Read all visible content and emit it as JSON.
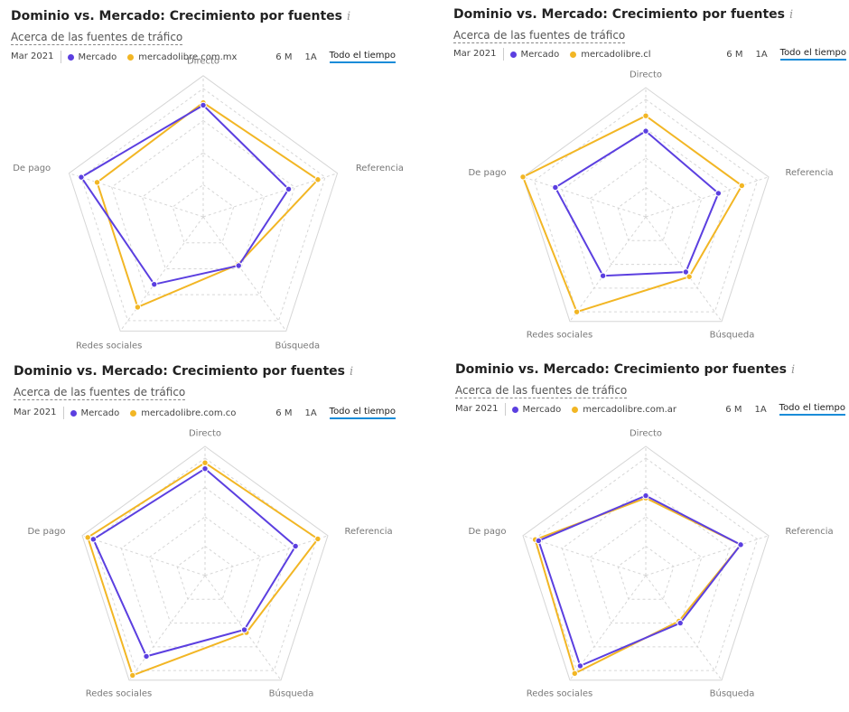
{
  "colors": {
    "mercado": "#5b3fe0",
    "domain": "#f2b624",
    "grid": "#d6d6d6"
  },
  "chart_data": [
    {
      "type": "radar",
      "title": "Dominio vs. Mercado: Crecimiento por fuentes",
      "link": "Acerca de las fuentes de tráfico",
      "date": "Mar 2021",
      "ranges": [
        "6 M",
        "1A",
        "Todo el tiempo"
      ],
      "active_range": "Todo el tiempo",
      "axes": [
        "Directo",
        "Referencia",
        "Búsqueda",
        "Redes sociales",
        "De pago"
      ],
      "series": [
        {
          "name": "Mercado",
          "values": [
            0.87,
            0.7,
            0.47,
            0.65,
            1.0
          ]
        },
        {
          "name": "mercadolibre.com.mx",
          "values": [
            0.89,
            0.94,
            0.46,
            0.87,
            0.87
          ]
        }
      ]
    },
    {
      "type": "radar",
      "title": "Dominio vs. Mercado: Crecimiento por fuentes",
      "link": "Acerca de las fuentes de tráfico",
      "date": "Mar 2021",
      "ranges": [
        "6 M",
        "1A",
        "Todo el tiempo"
      ],
      "active_range": "Todo el tiempo",
      "axes": [
        "Directo",
        "Referencia",
        "Búsqueda",
        "Redes sociales",
        "De pago"
      ],
      "series": [
        {
          "name": "Mercado",
          "values": [
            0.73,
            0.65,
            0.58,
            0.62,
            0.81
          ]
        },
        {
          "name": "mercadolibre.cl",
          "values": [
            0.86,
            0.86,
            0.63,
            1.0,
            1.1
          ]
        }
      ]
    },
    {
      "type": "radar",
      "title": "Dominio vs. Mercado: Crecimiento por fuentes",
      "link": "Acerca de las fuentes de tráfico",
      "date": "Mar 2021",
      "ranges": [
        "6 M",
        "1A",
        "Todo el tiempo"
      ],
      "active_range": "Todo el tiempo",
      "axes": [
        "Directo",
        "Referencia",
        "Búsqueda",
        "Redes sociales",
        "De pago"
      ],
      "series": [
        {
          "name": "Mercado",
          "values": [
            0.91,
            0.81,
            0.57,
            0.85,
            1.0
          ]
        },
        {
          "name": "mercadolibre.com.co",
          "values": [
            0.96,
            1.01,
            0.6,
            1.05,
            1.05
          ]
        }
      ]
    },
    {
      "type": "radar",
      "title": "Dominio vs. Mercado: Crecimiento por fuentes",
      "link": "Acerca de las fuentes de tráfico",
      "date": "Mar 2021",
      "ranges": [
        "6 M",
        "1A",
        "Todo el tiempo"
      ],
      "active_range": "Todo el tiempo",
      "axes": [
        "Directo",
        "Referencia",
        "Búsqueda",
        "Redes sociales",
        "De pago"
      ],
      "series": [
        {
          "name": "Mercado",
          "values": [
            0.68,
            0.85,
            0.5,
            0.95,
            0.96
          ]
        },
        {
          "name": "mercadolibre.com.ar",
          "values": [
            0.66,
            0.85,
            0.48,
            1.03,
            0.99
          ]
        }
      ]
    }
  ]
}
